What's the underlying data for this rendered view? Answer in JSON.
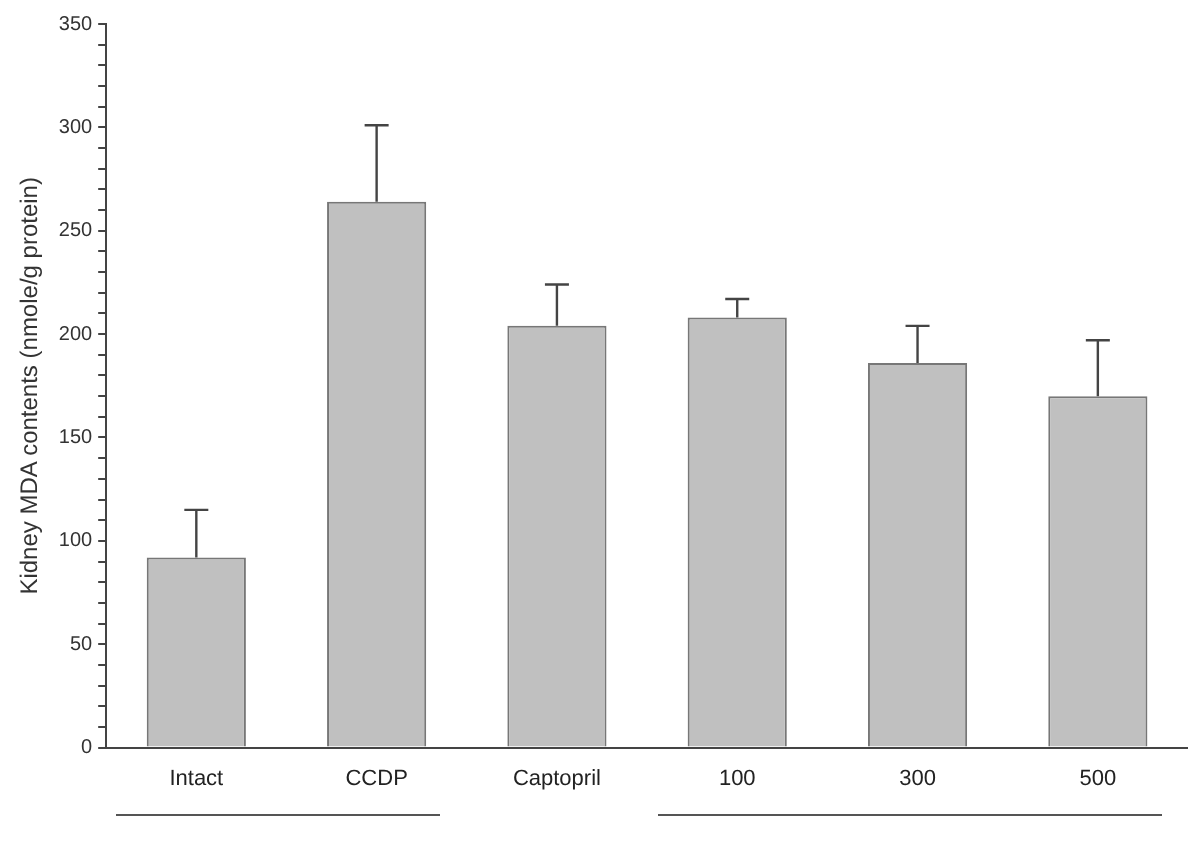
{
  "chart_data": {
    "type": "bar",
    "ylabel": "Kidney MDA contents (nmole/g protein)",
    "categories": [
      "Intact",
      "CCDP",
      "Captopril",
      "100",
      "300",
      "500"
    ],
    "values": [
      92,
      264,
      204,
      208,
      186,
      170
    ],
    "errors": [
      [
        92,
        115
      ],
      [
        264,
        301
      ],
      [
        204,
        224
      ],
      [
        208,
        217
      ],
      [
        186,
        204
      ],
      [
        170,
        197
      ]
    ],
    "color": "#c0c0c0",
    "ylim": [
      0,
      350
    ],
    "yticks": [
      0,
      {
        "value": 10,
        "label": null
      },
      {
        "value": 20,
        "label": null
      },
      {
        "value": 30,
        "label": null
      },
      {
        "value": 40,
        "label": null
      },
      50,
      {
        "value": 60,
        "label": null
      },
      {
        "value": 70,
        "label": null
      },
      {
        "value": 80,
        "label": null
      },
      {
        "value": 90,
        "label": null
      },
      100,
      {
        "value": 110,
        "label": null
      },
      {
        "value": 120,
        "label": null
      },
      {
        "value": 130,
        "label": null
      },
      {
        "value": 140,
        "label": null
      },
      150,
      {
        "value": 160,
        "label": null
      },
      {
        "value": 170,
        "label": null
      },
      {
        "value": 180,
        "label": null
      },
      {
        "value": 190,
        "label": null
      },
      200,
      {
        "value": 210,
        "label": null
      },
      {
        "value": 220,
        "label": null
      },
      {
        "value": 230,
        "label": null
      },
      {
        "value": 240,
        "label": null
      },
      250,
      {
        "value": 260,
        "label": null
      },
      {
        "value": 270,
        "label": null
      },
      {
        "value": 280,
        "label": null
      },
      {
        "value": 290,
        "label": null
      },
      300,
      {
        "value": 310,
        "label": null
      },
      {
        "value": 320,
        "label": null
      },
      {
        "value": 330,
        "label": null
      },
      {
        "value": 340,
        "label": null
      },
      350
    ],
    "grid": false,
    "legend": false
  }
}
